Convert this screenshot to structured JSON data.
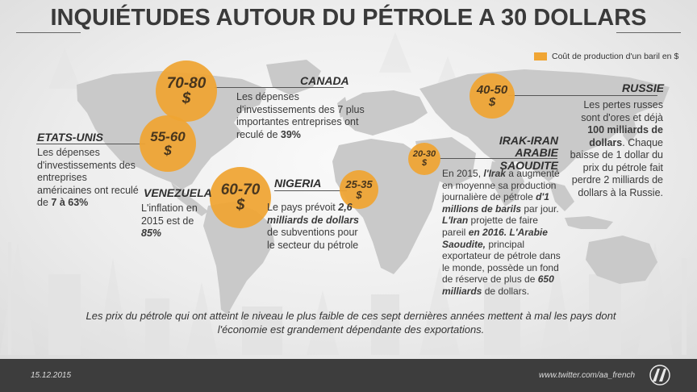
{
  "title": "INQUIÉTUDES AUTOUR DU PÉTROLE A 30 DOLLARS",
  "legend": {
    "label": "Coût de production d'un baril en $",
    "color": "#f0a533"
  },
  "bubbles": {
    "canada": {
      "range": "70-80",
      "currency": "$"
    },
    "usa": {
      "range": "55-60",
      "currency": "$"
    },
    "venezuela": {
      "range": "60-70",
      "currency": "$"
    },
    "nigeria": {
      "range": "25-35",
      "currency": "$"
    },
    "russia": {
      "range": "40-50",
      "currency": "$"
    },
    "iraq": {
      "range": "20-30",
      "currency": "$"
    }
  },
  "canada": {
    "heading": "CANADA",
    "text_1": "Les dépenses d'investissements des 7 plus importantes entreprises ont reculé de ",
    "text_bold": "39%"
  },
  "usa": {
    "heading": "ETATS-UNIS",
    "text_1": "Les dépenses d'investissements des entreprises américaines ont reculé de ",
    "text_bold": "7 à 63%"
  },
  "venezuela": {
    "heading": "VENEZUELA",
    "text_1": "L'inflation en 2015 est de ",
    "text_bold": "85%"
  },
  "nigeria": {
    "heading": "NIGERIA",
    "text_1": "Le pays prévoit ",
    "text_bold": "2,6 milliards de dollars",
    "text_2": " de subventions pour le secteur du pétrole"
  },
  "russia": {
    "heading": "RUSSIE",
    "text_1": "Les pertes russes sont d'ores et déjà ",
    "text_bold": "100 milliards de dollars",
    "text_2": ". Chaque baisse de 1 dollar du prix du pétrole fait perdre 2 milliards de dollars à la Russie."
  },
  "iraq": {
    "heading_1": "IRAK-IRAN",
    "heading_2": "ARABIE SAOUDITE",
    "p1": "En 2015, ",
    "p2": "l'Irak",
    "p3": " a augmenté en moyenne sa production journalière de pétrole ",
    "p4": "d'1 millions de barils",
    "p5": " par jour. ",
    "p6": "L'Iran",
    "p7": " projette de faire pareil ",
    "p8": "en 2016.",
    "p9": " ",
    "p10": "L'Arabie Saoudite,",
    "p11": " principal exportateur de pétrole dans le monde, possède un fond de réserve de plus de ",
    "p12": "650 milliards",
    "p13": " de dollars."
  },
  "footnote": {
    "line_1": "Les prix du pétrole qui ont atteint le niveau le plus faible de ces sept dernières années mettent à mal les pays dont",
    "line_2": "l'économie est grandement dépendante des exportations."
  },
  "footer": {
    "date": "15.12.2015",
    "twitter": "www.twitter.com/aa_french",
    "logo": "aa-logo-icon"
  }
}
